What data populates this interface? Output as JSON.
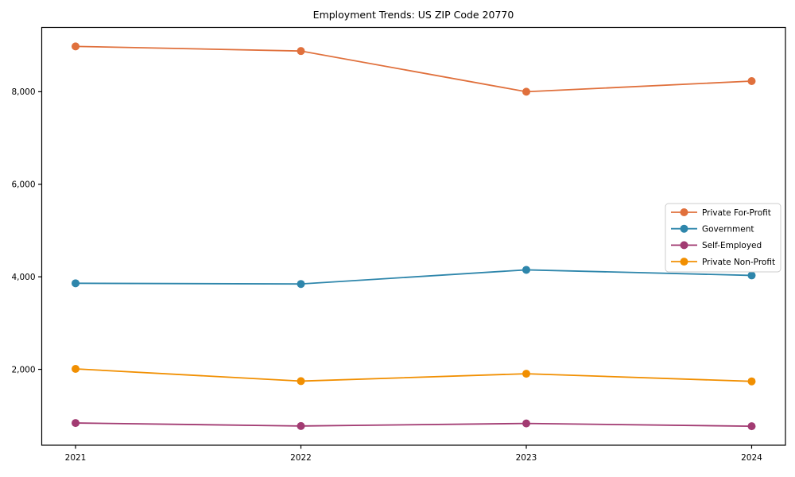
{
  "title": "Employment Trends: US ZIP Code 20770",
  "chart_data": {
    "type": "line",
    "title": "Employment Trends: US ZIP Code 20770",
    "xlabel": "",
    "ylabel": "",
    "x": [
      2021,
      2022,
      2023,
      2024
    ],
    "xticks": [
      "2021",
      "2022",
      "2023",
      "2024"
    ],
    "yticks": [
      2000,
      4000,
      6000,
      8000
    ],
    "ytick_labels": [
      "2,000",
      "4,000",
      "6,000",
      "8,000"
    ],
    "xlim": [
      2020.85,
      2024.15
    ],
    "ylim": [
      360,
      9390
    ],
    "grid": false,
    "legend_position": "center right",
    "series": [
      {
        "name": "Private For-Profit",
        "color": "#e0703c",
        "values": [
          8980,
          8880,
          8000,
          8230
        ]
      },
      {
        "name": "Government",
        "color": "#2e86ab",
        "values": [
          3860,
          3845,
          4150,
          4030
        ]
      },
      {
        "name": "Self-Employed",
        "color": "#a23b72",
        "values": [
          840,
          775,
          830,
          770
        ]
      },
      {
        "name": "Private Non-Profit",
        "color": "#f18f01",
        "values": [
          2010,
          1745,
          1905,
          1740
        ]
      }
    ],
    "axis_color": "#000000",
    "legend_border_color": "#cccccc",
    "background_color": "#ffffff"
  }
}
